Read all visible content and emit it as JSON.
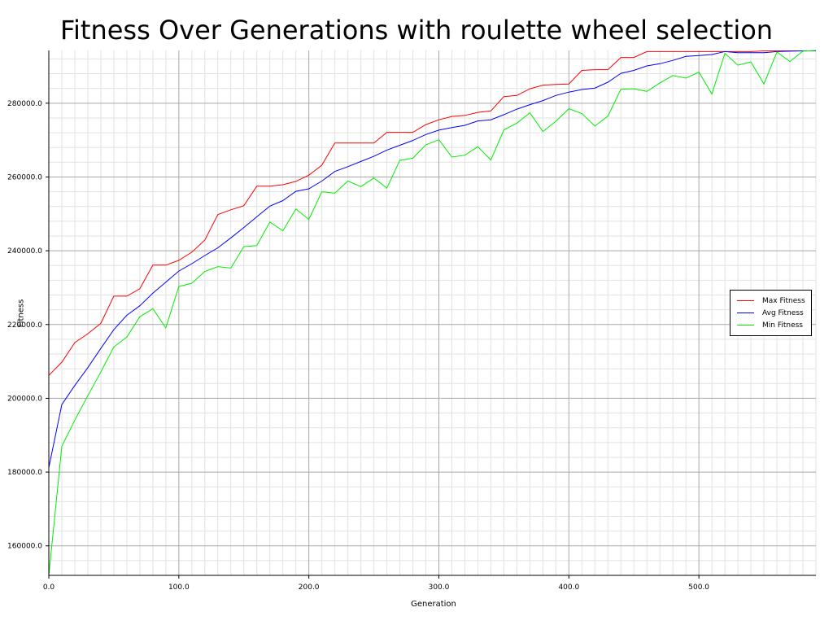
{
  "chart_data": {
    "type": "line",
    "title": "Fitness Over Generations with roulette wheel selection",
    "xlabel": "Generation",
    "ylabel": "Fitness",
    "xlim": [
      0,
      590
    ],
    "ylim": [
      152000,
      294300
    ],
    "x_ticks": [
      "0.0",
      "100.0",
      "200.0",
      "300.0",
      "400.0",
      "500.0"
    ],
    "y_ticks": [
      "160000.0",
      "180000.0",
      "200000.0",
      "220000.0",
      "240000.0",
      "260000.0",
      "280000.0"
    ],
    "grid": true,
    "legend_position": "right",
    "x": [
      0,
      10,
      20,
      30,
      40,
      50,
      60,
      70,
      80,
      90,
      100,
      110,
      120,
      130,
      140,
      150,
      160,
      170,
      180,
      190,
      200,
      210,
      220,
      230,
      240,
      250,
      260,
      270,
      280,
      290,
      300,
      310,
      320,
      330,
      340,
      350,
      360,
      370,
      380,
      390,
      400,
      410,
      420,
      430,
      440,
      450,
      460,
      470,
      480,
      490,
      500,
      510,
      520,
      530,
      540,
      550,
      560,
      570,
      580,
      590
    ],
    "series": [
      {
        "name": "Max Fitness",
        "color": "#ff0000",
        "values": [
          206200,
          209800,
          215100,
          217500,
          220300,
          227700,
          227700,
          229700,
          236100,
          236100,
          237400,
          239600,
          242900,
          249800,
          251100,
          252200,
          257500,
          257500,
          257900,
          258800,
          260500,
          263200,
          269200,
          269200,
          269200,
          269200,
          272100,
          272100,
          272100,
          274200,
          275500,
          276400,
          276700,
          277500,
          277900,
          281800,
          282100,
          283900,
          284900,
          285100,
          285200,
          288900,
          289100,
          289100,
          292400,
          292400,
          294000,
          294000,
          294000,
          294000,
          294000,
          294000,
          294000,
          294000,
          294000,
          294200,
          294200,
          294200,
          294200,
          294200
        ]
      },
      {
        "name": "Avg Fitness",
        "color": "#0000ff",
        "values": [
          181200,
          198300,
          203500,
          208300,
          213500,
          218600,
          222500,
          225100,
          228500,
          231500,
          234500,
          236500,
          238700,
          240800,
          243500,
          246300,
          249200,
          252100,
          253600,
          256100,
          256800,
          258900,
          261500,
          262800,
          264200,
          265600,
          267300,
          268600,
          269900,
          271500,
          272700,
          273400,
          274000,
          275200,
          275500,
          276900,
          278400,
          279600,
          280700,
          282100,
          283000,
          283700,
          284100,
          285700,
          288100,
          288900,
          290100,
          290700,
          291600,
          292700,
          292900,
          293200,
          294000,
          293700,
          293700,
          293700,
          294000,
          294100,
          294200,
          294200
        ]
      },
      {
        "name": "Min Fitness",
        "color": "#00ee00",
        "values": [
          152000,
          187000,
          194100,
          200700,
          207100,
          213900,
          216600,
          222100,
          224300,
          219100,
          230300,
          231200,
          234400,
          235700,
          235300,
          241100,
          241400,
          247800,
          245400,
          251300,
          248500,
          256000,
          255600,
          258900,
          257400,
          259700,
          257000,
          264500,
          265100,
          268700,
          270100,
          265400,
          265900,
          268200,
          264600,
          272800,
          274600,
          277400,
          272300,
          275100,
          278500,
          277200,
          273800,
          276500,
          283800,
          283900,
          283200,
          285500,
          287500,
          286800,
          288400,
          282500,
          293500,
          290300,
          291200,
          285200,
          293900,
          291300,
          294100,
          294300
        ]
      }
    ]
  }
}
